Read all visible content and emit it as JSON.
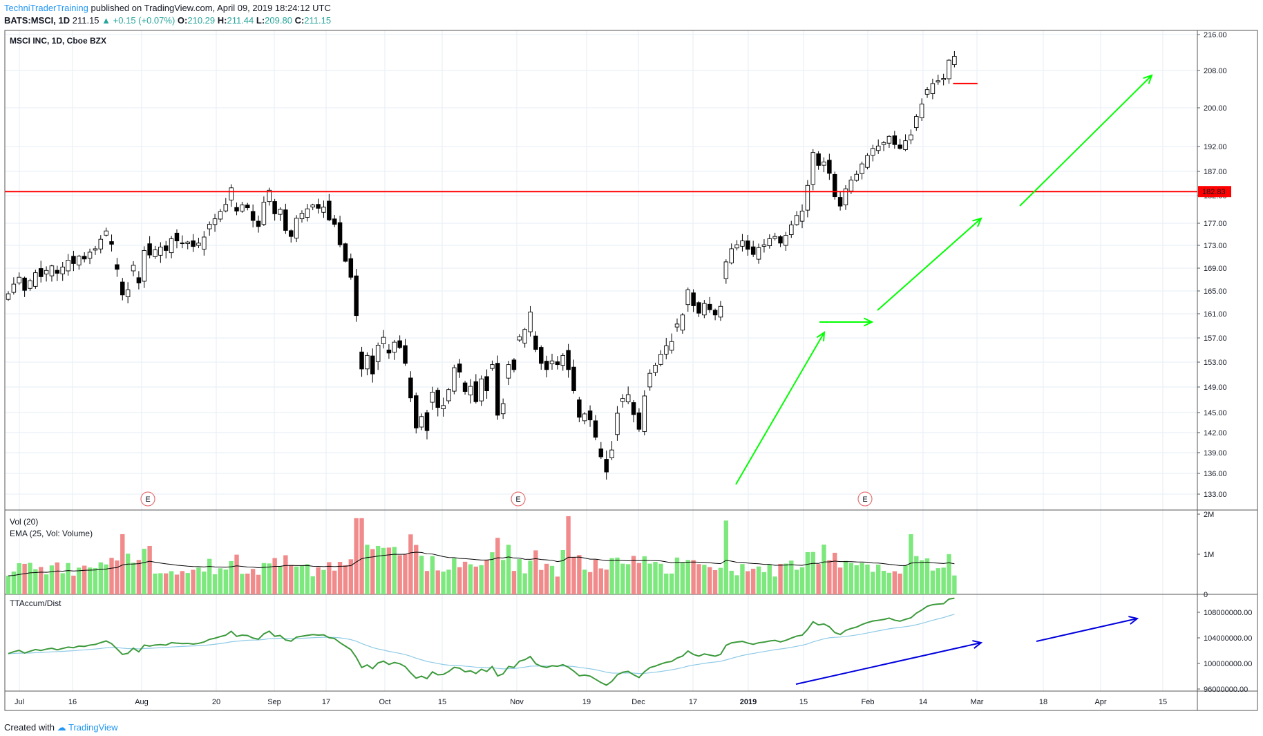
{
  "header": {
    "author": "TechniTraderTraining",
    "published_text": "published on TradingView.com, April 09, 2019 18:24:12 UTC",
    "symbol": "BATS:MSCI, 1D",
    "last": "211.15",
    "change": "+0.15 (+0.07%)",
    "o_label": "O:",
    "o_value": "210.29",
    "h_label": "H:",
    "h_value": "211.44",
    "l_label": "L:",
    "l_value": "209.80",
    "c_label": "C:",
    "c_value": "211.15"
  },
  "price_pane": {
    "title": "MSCI INC, 1D, Cboe BZX",
    "earnings_marker": "E"
  },
  "volume_pane": {
    "title1": "Vol (20)",
    "title2": "EMA (25, Vol: Volume)"
  },
  "accum_pane": {
    "title": "TTAccum/Dist"
  },
  "footer": {
    "created_with": "Created with",
    "brand": "TradingView"
  },
  "colors": {
    "up_vol": "#7de87d",
    "down_vol": "#f18a8a",
    "resistance": "#ff0000",
    "trend_arrow": "#00ff00",
    "accum_line": "#3c9a3c",
    "accum_ma": "#8ecae6",
    "blue_arrow": "#0000dd"
  },
  "chart_data": [
    {
      "type": "candlestick",
      "title": "MSCI INC, 1D, Cboe BZX",
      "y_ticks": [
        216,
        208,
        200,
        192,
        187,
        182,
        177,
        173,
        169,
        165,
        161,
        157,
        153,
        149,
        145,
        142,
        139,
        136,
        133
      ],
      "y_tick_labels": [
        "216.00",
        "208.00",
        "200.00",
        "192.00",
        "187.00",
        "182.00",
        "177.00",
        "173.00",
        "169.00",
        "165.00",
        "161.00",
        "157.00",
        "153.00",
        "149.00",
        "145.00",
        "142.00",
        "139.00",
        "136.00",
        "133.00"
      ],
      "x_tick_labels": [
        "Jul",
        "16",
        "Aug",
        "20",
        "Sep",
        "17",
        "Oct",
        "15",
        "Nov",
        "19",
        "Dec",
        "17",
        "2019",
        "15",
        "Feb",
        "14",
        "Mar",
        "18",
        "Apr",
        "15"
      ],
      "resistance_level": 182.83,
      "resistance_label": "182.83",
      "earnings_markers_x": [
        13,
        59,
        100
      ],
      "closes": [
        164.5,
        166.2,
        167.4,
        165.1,
        166.8,
        168.2,
        167.5,
        168.6,
        169.4,
        168.1,
        169.2,
        170.4,
        169.8,
        171.1,
        170.6,
        171.8,
        172.4,
        174.1,
        175.6,
        173.2,
        168.8,
        164.3,
        165.2,
        169.5,
        166.4,
        172.1,
        171.3,
        172.2,
        172.7,
        172.1,
        174.2,
        173.8,
        173.4,
        173.6,
        172.8,
        173.4,
        174.5,
        176.8,
        177.8,
        179.1,
        180.4,
        183.6,
        179.2,
        180.3,
        179.8,
        177.5,
        176.4,
        180.8,
        183.1,
        178.7,
        179.5,
        175.7,
        174.6,
        177.9,
        178.8,
        179.6,
        180.3,
        179.7,
        179.9,
        177.6,
        176.8,
        173.1,
        170.2,
        167.4,
        160.7,
        151.9,
        154.1,
        151.1,
        155.8,
        157.1,
        154.5,
        156.3,
        155.4,
        152.8,
        147.3,
        142.7,
        144.4,
        142.3,
        148.2,
        145.8,
        146.1,
        148.6,
        152.1,
        151.4,
        148.3,
        149.1,
        146.7,
        150.3,
        148.4,
        152.6,
        144.6,
        146.4,
        152.6,
        151.8,
        157.2,
        158.4,
        161.3,
        155.1,
        152.8,
        151.8,
        153.2,
        152.6,
        154.1,
        151.8,
        148.4,
        144.3,
        144.8,
        143.9,
        141.3,
        138.4,
        136.2,
        139.4,
        144.9,
        147.2,
        147.8,
        144.7,
        142.5,
        147.6,
        151.2,
        152.5,
        154.3,
        155.7,
        156.4,
        159.3,
        160.8,
        165.2,
        162.4,
        161.1,
        162.8,
        161.7,
        160.8,
        162.3,
        170.1,
        172.4,
        173.1,
        173.8,
        172.3,
        171.4,
        172.6,
        173.1,
        174.2,
        174.6,
        173.4,
        174.8,
        176.7,
        178.4,
        179.2,
        184.1,
        190.8,
        188.2,
        188.9,
        186.6,
        181.8,
        180.1,
        183.4,
        185.2,
        186.4,
        188.5,
        190.2,
        191.6,
        192.1,
        192.8,
        194.1,
        192.4,
        191.6,
        193.2,
        194.4,
        198.2,
        200.8,
        203.9,
        205.2,
        205.8,
        206.3,
        210.29,
        211.15
      ],
      "series": [
        {
          "name": "MSCI INC"
        }
      ]
    },
    {
      "type": "bar",
      "title": "Vol (20)",
      "y_tick_labels": [
        "2M",
        "1M",
        "0"
      ],
      "y_ticks": [
        2000000,
        1000000,
        0
      ],
      "ema_name": "EMA (25, Vol: Volume)"
    },
    {
      "type": "line",
      "title": "TTAccum/Dist",
      "y_ticks": [
        108000000,
        104000000,
        100000000,
        96000000
      ],
      "y_tick_labels": [
        "108000000.00",
        "104000000.00",
        "100000000.00",
        "96000000.00"
      ]
    }
  ]
}
